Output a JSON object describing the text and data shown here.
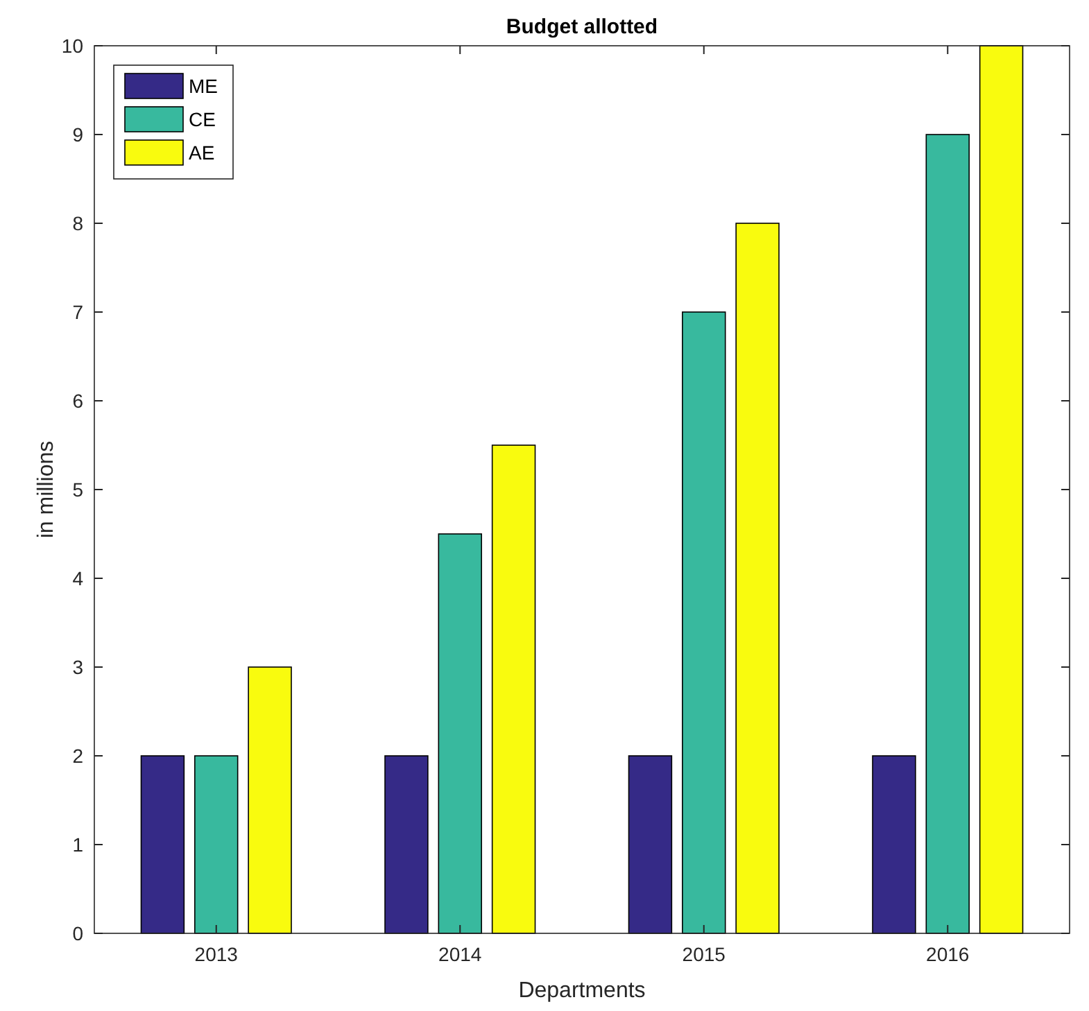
{
  "chart_data": {
    "type": "bar",
    "title": "Budget allotted",
    "xlabel": "Departments",
    "ylabel": "in millions",
    "categories": [
      "2013",
      "2014",
      "2015",
      "2016"
    ],
    "series": [
      {
        "name": "ME",
        "color": "#352a87",
        "values": [
          2,
          2,
          2,
          2
        ]
      },
      {
        "name": "CE",
        "color": "#38b99e",
        "values": [
          2,
          4.5,
          7,
          9
        ]
      },
      {
        "name": "AE",
        "color": "#f9fb0e",
        "values": [
          3,
          5.5,
          8,
          10
        ]
      }
    ],
    "ylim": [
      0,
      10
    ],
    "yticks": [
      0,
      1,
      2,
      3,
      4,
      5,
      6,
      7,
      8,
      9,
      10
    ],
    "grid": false,
    "legend": "top left"
  }
}
